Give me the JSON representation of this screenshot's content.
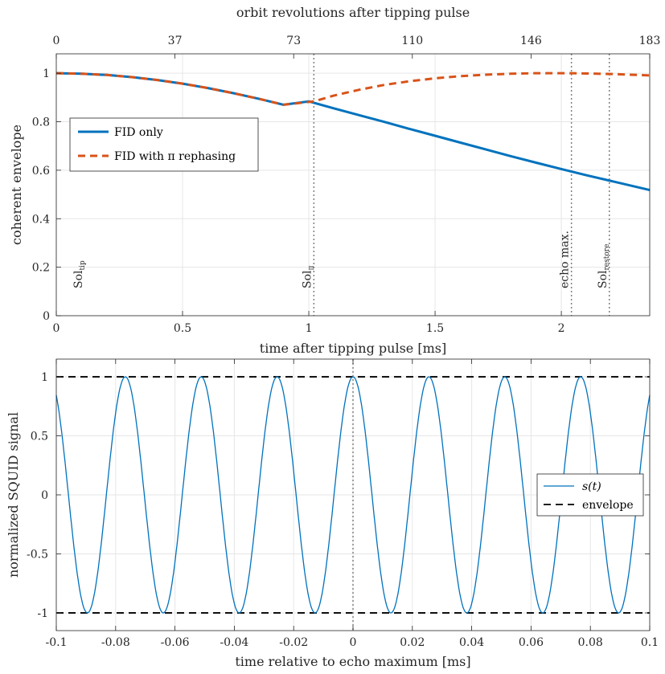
{
  "chart_data": [
    {
      "type": "line",
      "xlabel": "time after tipping pulse [ms]",
      "ylabel": "coherent envelope",
      "x2label": "orbit revolutions after tipping pulse",
      "xlim": [
        0,
        2.35
      ],
      "ylim": [
        0,
        1.08
      ],
      "xticks": [
        "0",
        "0.5",
        "1",
        "1.5",
        "2"
      ],
      "xtick_values": [
        0,
        0.5,
        1,
        1.5,
        2
      ],
      "yticks": [
        "0",
        "0.2",
        "0.4",
        "0.6",
        "0.8",
        "1"
      ],
      "ytick_values": [
        0,
        0.2,
        0.4,
        0.6,
        0.8,
        1
      ],
      "x2ticks": [
        "0",
        "37",
        "73",
        "110",
        "146",
        "183"
      ],
      "x2tick_positions_ms": [
        0,
        0.47,
        0.94,
        1.41,
        1.88,
        2.35
      ],
      "grid": true,
      "legend": "left",
      "series": [
        {
          "name": "FID only",
          "style": "solid",
          "color": "#0072BD",
          "x": [
            0,
            0.1,
            0.2,
            0.3,
            0.4,
            0.5,
            0.6,
            0.7,
            0.8,
            0.9,
            1.0,
            1.1,
            1.2,
            1.3,
            1.4,
            1.5,
            1.6,
            1.7,
            1.8,
            1.9,
            2.0,
            2.1,
            2.2,
            2.35
          ],
          "y": [
            1.0,
            0.998,
            0.993,
            0.984,
            0.972,
            0.957,
            0.939,
            0.918,
            0.895,
            0.87,
            0.884,
            0.855,
            0.827,
            0.799,
            0.77,
            0.742,
            0.714,
            0.686,
            0.658,
            0.631,
            0.605,
            0.579,
            0.555,
            0.518
          ]
        },
        {
          "name": "FID with π rephasing",
          "style": "dashed",
          "color": "#D95319",
          "x": [
            0,
            0.1,
            0.2,
            0.3,
            0.4,
            0.5,
            0.6,
            0.7,
            0.8,
            0.9,
            1.02,
            1.1,
            1.2,
            1.3,
            1.4,
            1.5,
            1.6,
            1.7,
            1.8,
            1.9,
            2.0,
            2.04,
            2.1,
            2.2,
            2.35
          ],
          "y": [
            1.0,
            0.998,
            0.993,
            0.984,
            0.972,
            0.957,
            0.939,
            0.918,
            0.895,
            0.87,
            0.884,
            0.908,
            0.932,
            0.952,
            0.967,
            0.979,
            0.988,
            0.994,
            0.998,
            1.0,
            1.0,
            1.0,
            0.999,
            0.997,
            0.991
          ]
        }
      ],
      "markers": [
        {
          "x": 0,
          "label": "Sol",
          "sub": "tip",
          "line": false
        },
        {
          "x": 1.02,
          "label": "Sol",
          "sub": "π",
          "line": true
        },
        {
          "x": 2.04,
          "label": "echo max.",
          "sub": "",
          "line": true
        },
        {
          "x": 2.19,
          "label": "Sol",
          "sub": "restore",
          "line": true
        }
      ]
    },
    {
      "type": "line",
      "xlabel": "time relative to echo maximum [ms]",
      "ylabel": "normalized SQUID signal",
      "xlim": [
        -0.1,
        0.1
      ],
      "ylim": [
        -1.15,
        1.15
      ],
      "xticks": [
        "-0.1",
        "-0.08",
        "-0.06",
        "-0.04",
        "-0.02",
        "0",
        "0.02",
        "0.04",
        "0.06",
        "0.08",
        "0.1"
      ],
      "xtick_values": [
        -0.1,
        -0.08,
        -0.06,
        -0.04,
        -0.02,
        0,
        0.02,
        0.04,
        0.06,
        0.08,
        0.1
      ],
      "yticks": [
        "-1",
        "-0.5",
        "0",
        "0.5",
        "1"
      ],
      "ytick_values": [
        -1,
        -0.5,
        0,
        0.5,
        1
      ],
      "grid": true,
      "legend": "right",
      "series": [
        {
          "name": "s(t)",
          "style": "solid",
          "color": "#0072BD",
          "frequency_khz": 39.1,
          "phase_zero_at_ms": 0
        },
        {
          "name": "envelope",
          "style": "dashed",
          "color": "#000000",
          "values": [
            1,
            -1
          ]
        }
      ],
      "marker_x": 0
    }
  ]
}
